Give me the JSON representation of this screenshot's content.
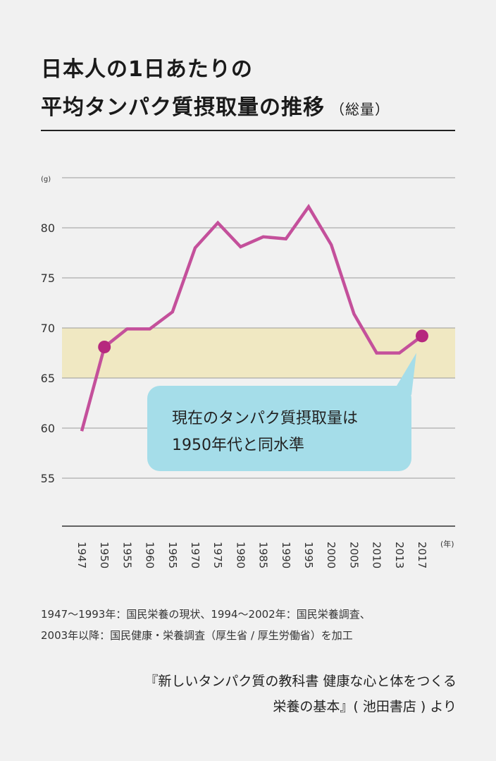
{
  "title": {
    "line1": "日本人の1日あたりの",
    "line2": "平均タンパク質摂取量の推移",
    "line2_sub": "（総量）"
  },
  "callout": {
    "line1": "現在のタンパク質摂取量は",
    "line2": "1950年代と同水準"
  },
  "source": {
    "line1": "1947～1993年：国民栄養の現状、1994～2002年：国民栄養調査、",
    "line2": "2003年以降：国民健康・栄養調査（厚生省 / 厚生労働省）を加工"
  },
  "credit": {
    "line1": "『新しいタンパク質の教科書 健康な心と体をつくる",
    "line2": "栄養の基本』( 池田書店 ) より"
  },
  "chart_data": {
    "type": "line",
    "title": "日本人の1日あたりの平均タンパク質摂取量の推移（総量）",
    "ylabel": "(g)",
    "xlabel": "(年)",
    "y_ticks": [
      55,
      60,
      65,
      70,
      75,
      80
    ],
    "ylim": [
      50,
      85
    ],
    "x_tick_labels": [
      "1947",
      "1950",
      "1955",
      "1960",
      "1965",
      "1970",
      "1975",
      "1980",
      "1985",
      "1990",
      "1995",
      "2000",
      "2005",
      "2010",
      "2013",
      "2017"
    ],
    "grid": true,
    "band": {
      "from": 65,
      "to": 70,
      "color": "#f0e8c2"
    },
    "series": [
      {
        "color": "#c4509b",
        "points": [
          {
            "x": "1947",
            "y": 59.7
          },
          {
            "x": "1950",
            "y": 68.1
          },
          {
            "x": "1955",
            "y": 69.9
          },
          {
            "x": "1960",
            "y": 69.9
          },
          {
            "x": "1965",
            "y": 71.6
          },
          {
            "x": "1970",
            "y": 78.0
          },
          {
            "x": "1975",
            "y": 80.5
          },
          {
            "x": "1980",
            "y": 78.1
          },
          {
            "x": "1985",
            "y": 79.1
          },
          {
            "x": "1990",
            "y": 78.9
          },
          {
            "x": "1995",
            "y": 82.1
          },
          {
            "x": "2000",
            "y": 78.3
          },
          {
            "x": "2005",
            "y": 71.4
          },
          {
            "x": "2010",
            "y": 67.5
          },
          {
            "x": "2013",
            "y": 67.5
          },
          {
            "x": "2017",
            "y": 69.2
          }
        ],
        "highlight_points": [
          "1950",
          "2017"
        ],
        "highlight_color": "#b6287e"
      }
    ]
  }
}
